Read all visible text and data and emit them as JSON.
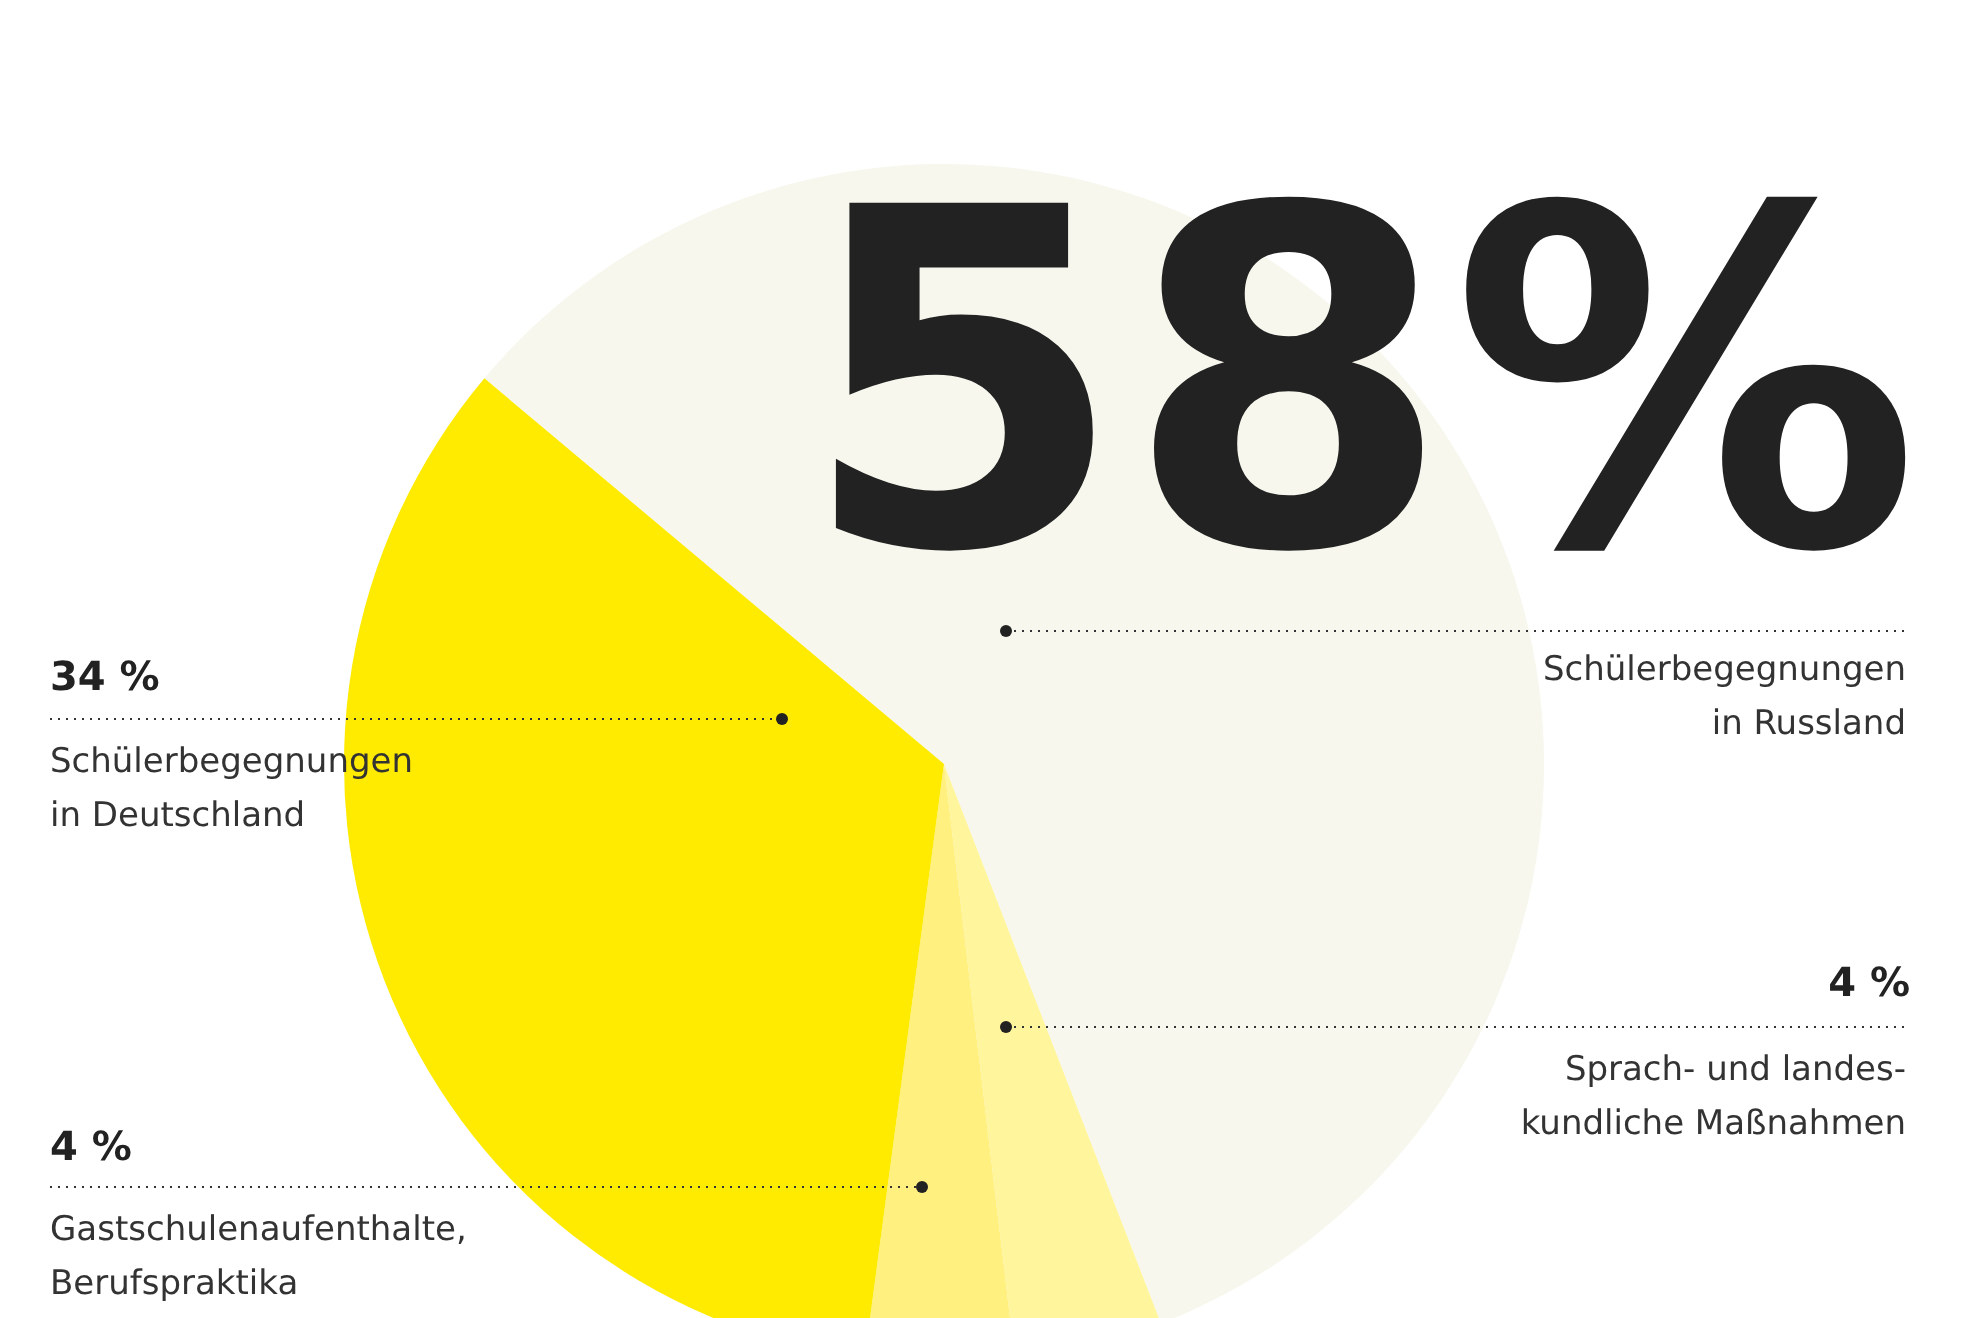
{
  "chart_data": {
    "type": "pie",
    "categories": [
      "Schülerbegegnungen\nin Russland",
      "Sprach- und landes-\nkundliche Maßnahmen",
      "Gastschulenaufenthalte,\nBerufspraktika",
      "Schülerbegegnungen\nin Deutschland"
    ],
    "values": [
      58,
      4,
      4,
      34
    ],
    "colors": [
      "#f7f7ee",
      "#fff59d",
      "#fff080",
      "#ffeb00"
    ],
    "value_labels": [
      "58%",
      "4 %",
      "4 %",
      "34 %"
    ],
    "legend": false
  }
}
